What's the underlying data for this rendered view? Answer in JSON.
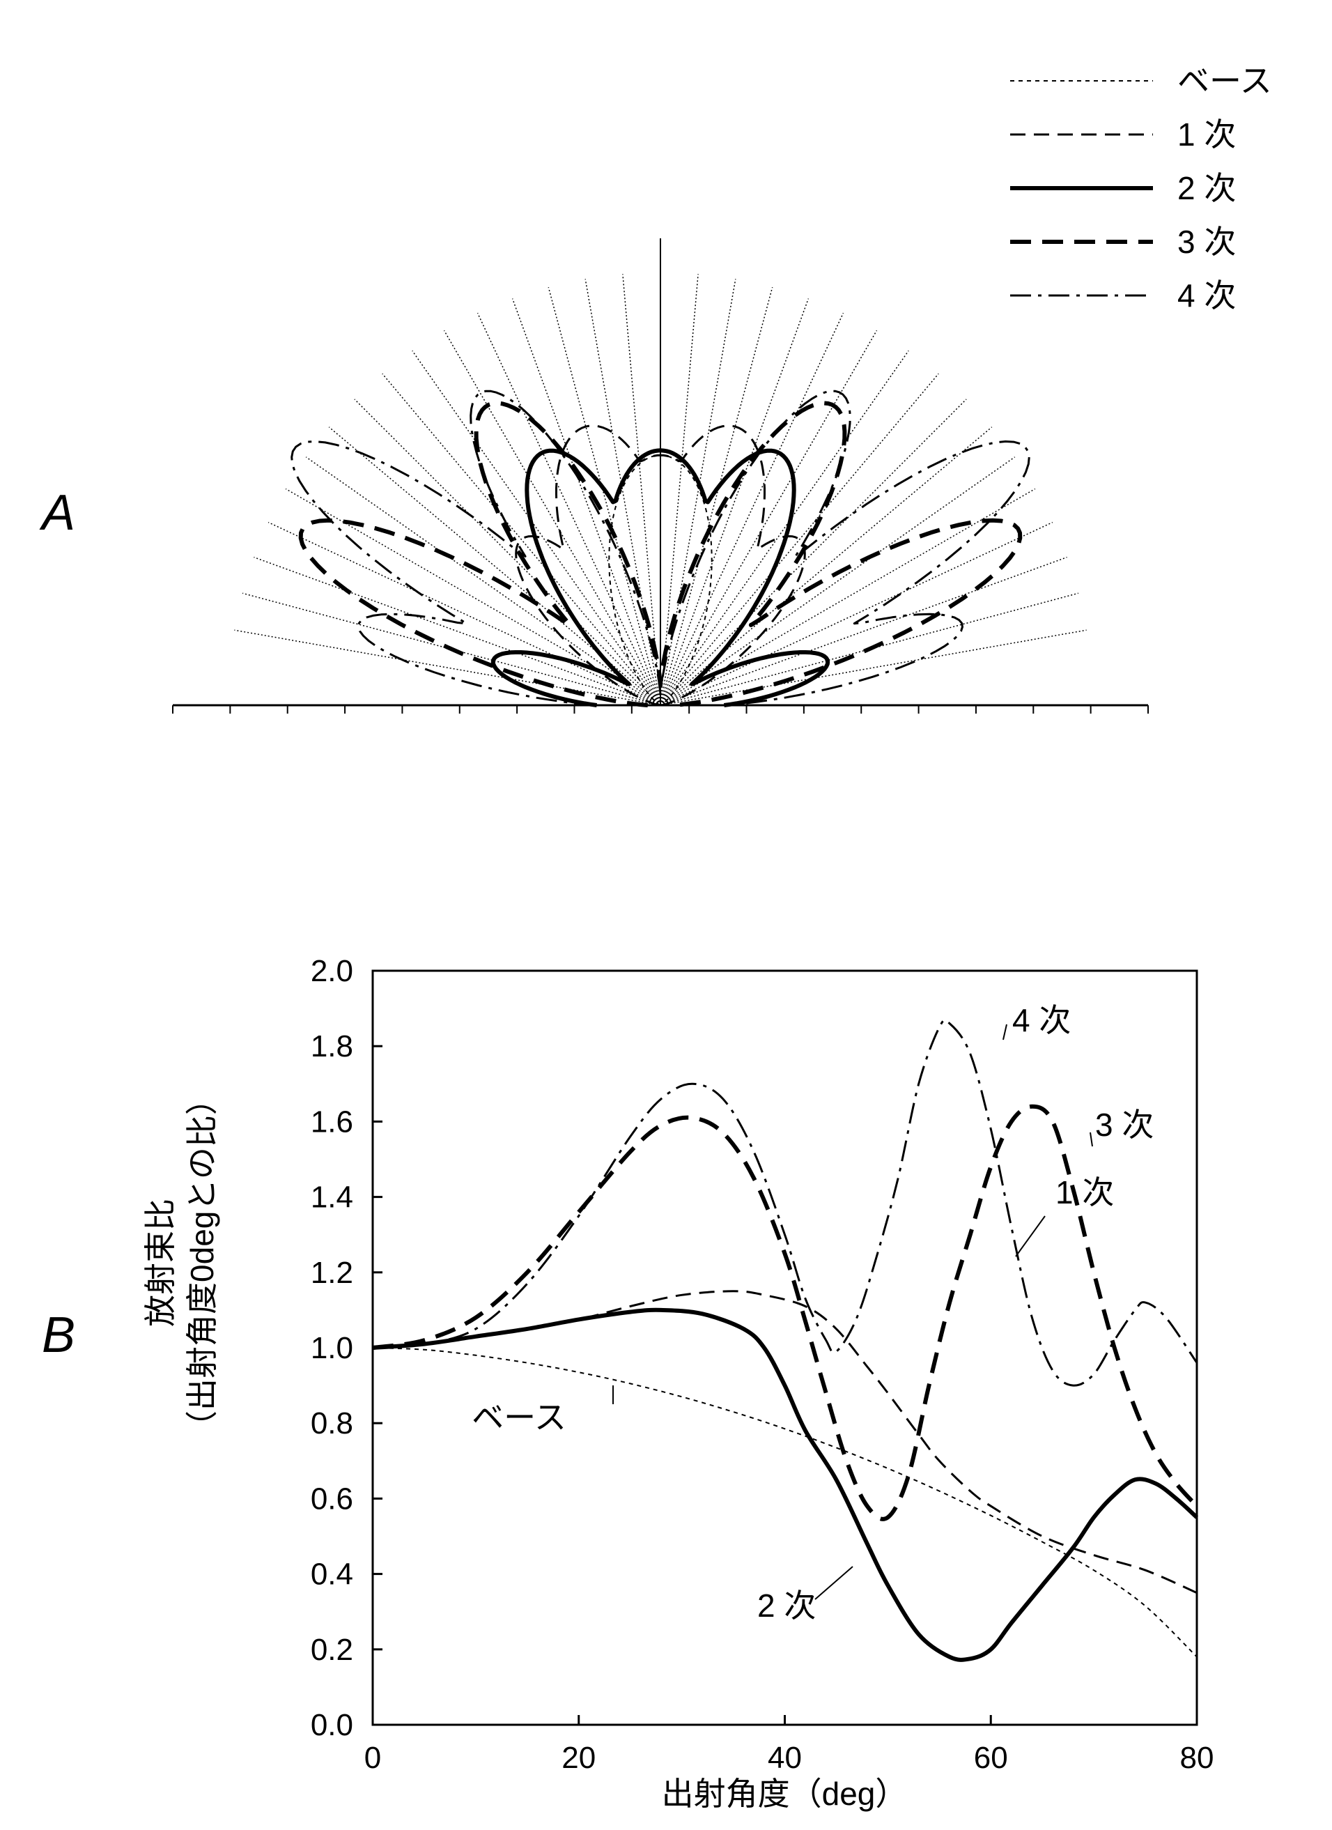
{
  "panels": {
    "a": "A",
    "b": "B"
  },
  "legend": {
    "items": [
      {
        "label": "ベース",
        "style": "fine-dashed"
      },
      {
        "label": "1 次",
        "style": "medium-dashed"
      },
      {
        "label": "2 次",
        "style": "solid-thick"
      },
      {
        "label": "3 次",
        "style": "long-dashed-thick"
      },
      {
        "label": "4 次",
        "style": "dash-dot"
      }
    ]
  },
  "chart_data": [
    {
      "type": "line",
      "panel": "A",
      "projection": "polar",
      "title": "",
      "note": "Far-field radiation patterns drawn in polar form; each curve is a pair of lobes symmetric about the vertical axis.",
      "angle_range_deg": [
        -80,
        80
      ],
      "angle_guides_deg": [
        -80,
        -75,
        -70,
        -65,
        -60,
        -55,
        -50,
        -45,
        -40,
        -35,
        -30,
        -25,
        -20,
        -15,
        -10,
        -5,
        0,
        5,
        10,
        15,
        20,
        25,
        30,
        35,
        40,
        45,
        50,
        55,
        60,
        65,
        70,
        75,
        80
      ],
      "series": [
        {
          "name": "ベース",
          "style": "fine-dashed",
          "lobe_angles_deg": [
            0
          ],
          "lobe_widths_deg": [
            28
          ],
          "radial_extent": [
            0.52
          ]
        },
        {
          "name": "1 次",
          "style": "medium-dashed",
          "lobe_angles_deg": [
            0,
            15,
            40
          ],
          "lobe_widths_deg": [
            30,
            25,
            20
          ],
          "radial_extent": [
            0.52,
            0.6,
            0.45
          ]
        },
        {
          "name": "2 次",
          "style": "solid-thick",
          "lobe_angles_deg": [
            0,
            25,
            75
          ],
          "lobe_widths_deg": [
            28,
            22,
            15
          ],
          "radial_extent": [
            0.53,
            0.58,
            0.36
          ]
        },
        {
          "name": "3 次",
          "style": "long-dashed-thick",
          "lobe_angles_deg": [
            30,
            64
          ],
          "lobe_widths_deg": [
            18,
            14
          ],
          "radial_extent": [
            0.72,
            0.83
          ]
        },
        {
          "name": "4 次",
          "style": "dash-dot",
          "lobe_angles_deg": [
            30,
            55,
            75
          ],
          "lobe_widths_deg": [
            16,
            14,
            12
          ],
          "radial_extent": [
            0.75,
            0.93,
            0.65
          ]
        }
      ]
    },
    {
      "type": "line",
      "panel": "B",
      "title": "",
      "xlabel": "出射角度（deg）",
      "ylabel": [
        "放射束比",
        "（出射角度0degとの比）"
      ],
      "xlim": [
        0,
        80
      ],
      "ylim": [
        0.0,
        2.0
      ],
      "xticks": [
        0,
        20,
        40,
        60,
        80
      ],
      "yticks": [
        "0.0",
        "0.2",
        "0.4",
        "0.6",
        "0.8",
        "1.0",
        "1.2",
        "1.4",
        "1.6",
        "1.8",
        "2.0"
      ],
      "grid": false,
      "legend_placement": "inline labels",
      "series": [
        {
          "name": "ベース",
          "style": "fine-dashed",
          "points": [
            [
              0,
              1.0
            ],
            [
              5,
              0.995
            ],
            [
              10,
              0.98
            ],
            [
              15,
              0.96
            ],
            [
              20,
              0.935
            ],
            [
              25,
              0.905
            ],
            [
              30,
              0.87
            ],
            [
              35,
              0.83
            ],
            [
              40,
              0.785
            ],
            [
              45,
              0.735
            ],
            [
              50,
              0.68
            ],
            [
              55,
              0.62
            ],
            [
              60,
              0.555
            ],
            [
              65,
              0.485
            ],
            [
              70,
              0.41
            ],
            [
              75,
              0.315
            ],
            [
              80,
              0.18
            ]
          ]
        },
        {
          "name": "1 次",
          "style": "medium-dashed",
          "points": [
            [
              0,
              1.0
            ],
            [
              5,
              1.01
            ],
            [
              10,
              1.03
            ],
            [
              15,
              1.05
            ],
            [
              20,
              1.075
            ],
            [
              25,
              1.11
            ],
            [
              30,
              1.14
            ],
            [
              35,
              1.15
            ],
            [
              38,
              1.14
            ],
            [
              42,
              1.11
            ],
            [
              45,
              1.05
            ],
            [
              48,
              0.95
            ],
            [
              50,
              0.88
            ],
            [
              53,
              0.77
            ],
            [
              55,
              0.7
            ],
            [
              58,
              0.62
            ],
            [
              60,
              0.58
            ],
            [
              65,
              0.5
            ],
            [
              70,
              0.45
            ],
            [
              75,
              0.41
            ],
            [
              80,
              0.35
            ]
          ]
        },
        {
          "name": "2 次",
          "style": "solid-thick",
          "points": [
            [
              0,
              1.0
            ],
            [
              5,
              1.01
            ],
            [
              10,
              1.03
            ],
            [
              15,
              1.05
            ],
            [
              20,
              1.075
            ],
            [
              25,
              1.095
            ],
            [
              28,
              1.1
            ],
            [
              32,
              1.09
            ],
            [
              36,
              1.05
            ],
            [
              38,
              1.0
            ],
            [
              40,
              0.9
            ],
            [
              42,
              0.78
            ],
            [
              45,
              0.65
            ],
            [
              48,
              0.48
            ],
            [
              50,
              0.37
            ],
            [
              53,
              0.24
            ],
            [
              56,
              0.18
            ],
            [
              58,
              0.175
            ],
            [
              60,
              0.2
            ],
            [
              62,
              0.27
            ],
            [
              65,
              0.37
            ],
            [
              68,
              0.47
            ],
            [
              70,
              0.55
            ],
            [
              72,
              0.61
            ],
            [
              74,
              0.65
            ],
            [
              76,
              0.64
            ],
            [
              78,
              0.6
            ],
            [
              80,
              0.55
            ]
          ]
        },
        {
          "name": "3 次",
          "style": "long-dashed-thick",
          "points": [
            [
              0,
              1.0
            ],
            [
              5,
              1.02
            ],
            [
              10,
              1.08
            ],
            [
              15,
              1.2
            ],
            [
              20,
              1.36
            ],
            [
              25,
              1.52
            ],
            [
              28,
              1.59
            ],
            [
              31,
              1.61
            ],
            [
              34,
              1.57
            ],
            [
              37,
              1.45
            ],
            [
              40,
              1.25
            ],
            [
              42,
              1.07
            ],
            [
              44,
              0.88
            ],
            [
              46,
              0.7
            ],
            [
              48,
              0.58
            ],
            [
              50,
              0.55
            ],
            [
              52,
              0.66
            ],
            [
              54,
              0.9
            ],
            [
              56,
              1.12
            ],
            [
              58,
              1.3
            ],
            [
              60,
              1.48
            ],
            [
              62,
              1.6
            ],
            [
              64,
              1.64
            ],
            [
              66,
              1.6
            ],
            [
              68,
              1.42
            ],
            [
              70,
              1.2
            ],
            [
              72,
              1.0
            ],
            [
              74,
              0.84
            ],
            [
              76,
              0.72
            ],
            [
              78,
              0.64
            ],
            [
              80,
              0.58
            ]
          ]
        },
        {
          "name": "4 次",
          "style": "dash-dot",
          "points": [
            [
              0,
              1.0
            ],
            [
              5,
              1.01
            ],
            [
              10,
              1.05
            ],
            [
              15,
              1.17
            ],
            [
              20,
              1.35
            ],
            [
              25,
              1.56
            ],
            [
              28,
              1.66
            ],
            [
              31,
              1.7
            ],
            [
              34,
              1.66
            ],
            [
              37,
              1.52
            ],
            [
              40,
              1.3
            ],
            [
              42,
              1.13
            ],
            [
              44,
              1.02
            ],
            [
              45,
              0.99
            ],
            [
              47,
              1.08
            ],
            [
              49,
              1.25
            ],
            [
              51,
              1.45
            ],
            [
              53,
              1.7
            ],
            [
              55,
              1.85
            ],
            [
              56,
              1.86
            ],
            [
              58,
              1.78
            ],
            [
              60,
              1.58
            ],
            [
              62,
              1.32
            ],
            [
              64,
              1.08
            ],
            [
              66,
              0.94
            ],
            [
              68,
              0.9
            ],
            [
              70,
              0.93
            ],
            [
              72,
              1.02
            ],
            [
              74,
              1.1
            ],
            [
              75,
              1.12
            ],
            [
              77,
              1.08
            ],
            [
              80,
              0.96
            ]
          ]
        }
      ],
      "annotations": [
        {
          "text": "ベース",
          "series": "ベース"
        },
        {
          "text": "1 次",
          "series": "1 次"
        },
        {
          "text": "2 次",
          "series": "2 次"
        },
        {
          "text": "3 次",
          "series": "3 次"
        },
        {
          "text": "4 次",
          "series": "4 次"
        }
      ]
    }
  ]
}
